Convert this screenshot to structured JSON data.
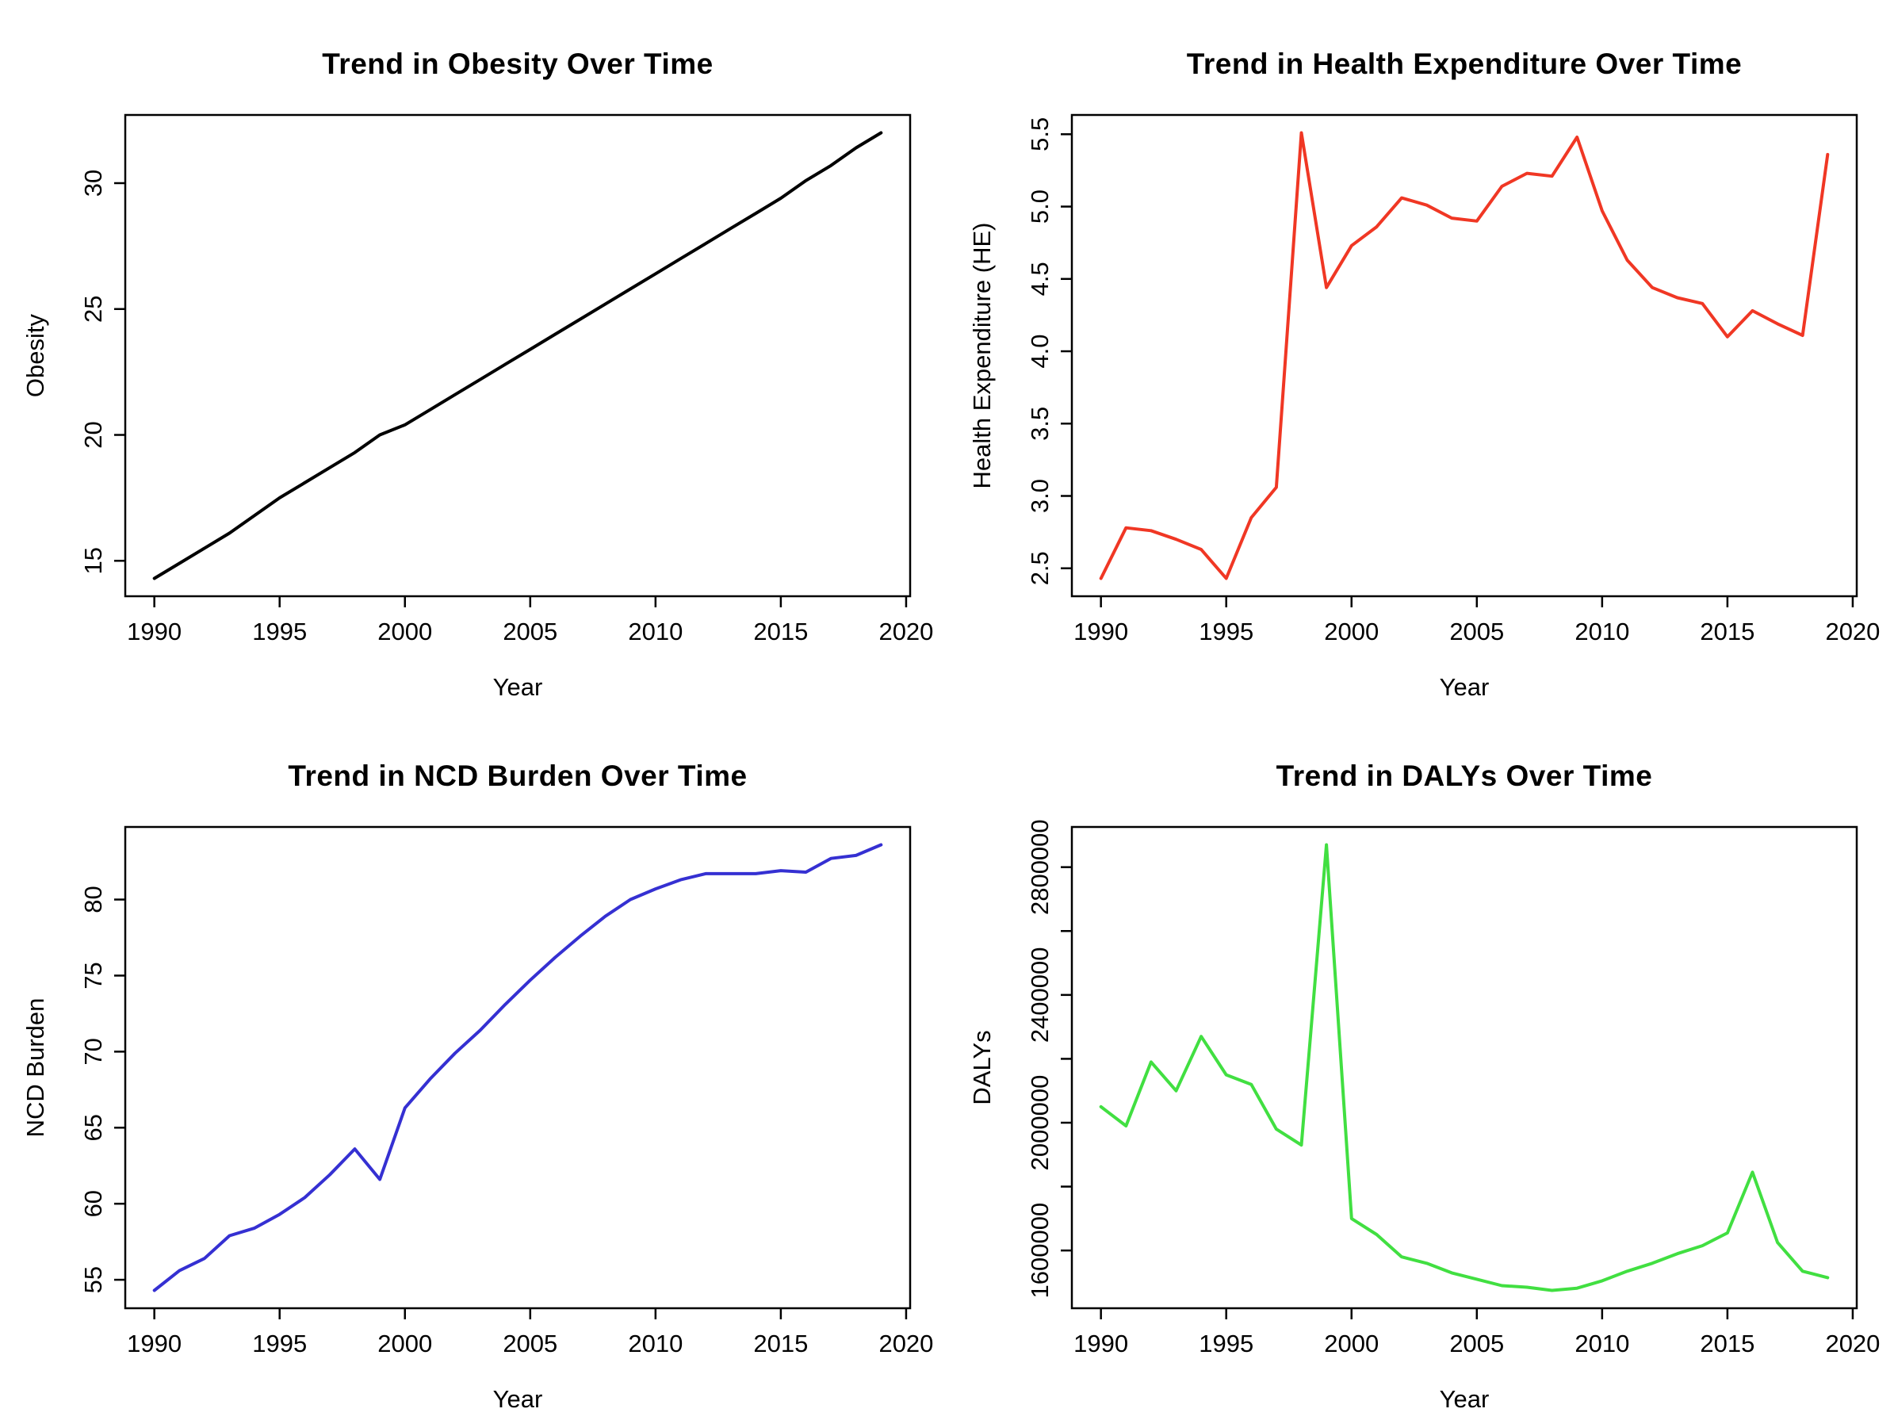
{
  "page": {
    "background_color": "#ffffff",
    "layout": "2x2 grid of R base line plots"
  },
  "chart_data": [
    {
      "id": "obesity",
      "type": "line",
      "title": "Trend in Obesity Over Time",
      "xlabel": "Year",
      "ylabel": "Obesity",
      "color": "#000000",
      "grid": false,
      "legend": "none",
      "x": [
        1990,
        1991,
        1992,
        1993,
        1994,
        1995,
        1996,
        1997,
        1998,
        1999,
        2000,
        2001,
        2002,
        2003,
        2004,
        2005,
        2006,
        2007,
        2008,
        2009,
        2010,
        2011,
        2012,
        2013,
        2014,
        2015,
        2016,
        2017,
        2018,
        2019
      ],
      "values": [
        14.3,
        14.9,
        15.5,
        16.1,
        16.8,
        17.5,
        18.1,
        18.7,
        19.3,
        20.0,
        20.4,
        21.0,
        21.6,
        22.2,
        22.8,
        23.4,
        24.0,
        24.6,
        25.2,
        25.8,
        26.4,
        27.0,
        27.6,
        28.2,
        28.8,
        29.4,
        30.1,
        30.7,
        31.4,
        32.0
      ],
      "xlim": [
        1988.84,
        2020.16
      ],
      "ylim": [
        13.592,
        32.708
      ],
      "xticks": [
        1990,
        1995,
        2000,
        2005,
        2010,
        2015,
        2020
      ],
      "yticks": [
        15,
        20,
        25,
        30
      ],
      "ytick_labels": [
        "15",
        "20",
        "25",
        "30"
      ]
    },
    {
      "id": "health-expenditure",
      "type": "line",
      "title": "Trend in Health Expenditure Over Time",
      "xlabel": "Year",
      "ylabel": "Health Expenditure (HE)",
      "color": "#F03724",
      "grid": false,
      "legend": "none",
      "x": [
        1990,
        1991,
        1992,
        1993,
        1994,
        1995,
        1996,
        1997,
        1998,
        1999,
        2000,
        2001,
        2002,
        2003,
        2004,
        2005,
        2006,
        2007,
        2008,
        2009,
        2010,
        2011,
        2012,
        2013,
        2014,
        2015,
        2016,
        2017,
        2018,
        2019
      ],
      "values": [
        2.43,
        2.78,
        2.76,
        2.7,
        2.63,
        2.43,
        2.85,
        3.06,
        5.51,
        4.44,
        4.73,
        4.86,
        5.06,
        5.01,
        4.92,
        4.9,
        5.14,
        5.23,
        5.21,
        5.48,
        4.97,
        4.63,
        4.44,
        4.37,
        4.33,
        4.1,
        4.28,
        4.19,
        4.11,
        5.36
      ],
      "xlim": [
        1988.84,
        2020.16
      ],
      "ylim": [
        2.3068,
        5.6332
      ],
      "xticks": [
        1990,
        1995,
        2000,
        2005,
        2010,
        2015,
        2020
      ],
      "yticks": [
        2.5,
        3.0,
        3.5,
        4.0,
        4.5,
        5.0,
        5.5
      ],
      "ytick_labels": [
        "2.5",
        "3.0",
        "3.5",
        "4.0",
        "4.5",
        "5.0",
        "5.5"
      ]
    },
    {
      "id": "ncd-burden",
      "type": "line",
      "title": "Trend in NCD Burden Over Time",
      "xlabel": "Year",
      "ylabel": "NCD Burden",
      "color": "#3530D2",
      "grid": false,
      "legend": "none",
      "x": [
        1990,
        1991,
        1992,
        1993,
        1994,
        1995,
        1996,
        1997,
        1998,
        1999,
        2000,
        2001,
        2002,
        2003,
        2004,
        2005,
        2006,
        2007,
        2008,
        2009,
        2010,
        2011,
        2012,
        2013,
        2014,
        2015,
        2016,
        2017,
        2018,
        2019
      ],
      "values": [
        54.3,
        55.6,
        56.4,
        57.9,
        58.4,
        59.3,
        60.4,
        61.9,
        63.6,
        61.6,
        66.3,
        68.2,
        69.9,
        71.4,
        73.1,
        74.7,
        76.2,
        77.6,
        78.9,
        80.0,
        80.7,
        81.3,
        81.7,
        81.7,
        81.7,
        81.9,
        81.8,
        82.7,
        82.9,
        83.6
      ],
      "xlim": [
        1988.84,
        2020.16
      ],
      "ylim": [
        53.128,
        84.772
      ],
      "xticks": [
        1990,
        1995,
        2000,
        2005,
        2010,
        2015,
        2020
      ],
      "yticks": [
        55,
        60,
        65,
        70,
        75,
        80
      ],
      "ytick_labels": [
        "55",
        "60",
        "65",
        "70",
        "75",
        "80"
      ]
    },
    {
      "id": "dalys",
      "type": "line",
      "title": "Trend in DALYs Over Time",
      "xlabel": "Year",
      "ylabel": "DALYs",
      "color": "#41DF41",
      "grid": false,
      "legend": "none",
      "x": [
        1990,
        1991,
        1992,
        1993,
        1994,
        1995,
        1996,
        1997,
        1998,
        1999,
        2000,
        2001,
        2002,
        2003,
        2004,
        2005,
        2006,
        2007,
        2008,
        2009,
        2010,
        2011,
        2012,
        2013,
        2014,
        2015,
        2016,
        2017,
        2018,
        2019
      ],
      "values": [
        2050000,
        1990000,
        2190000,
        2100000,
        2270000,
        2150000,
        2120000,
        1980000,
        1930000,
        2870000,
        1700000,
        1650000,
        1580000,
        1560000,
        1530000,
        1510000,
        1490000,
        1485000,
        1475000,
        1482000,
        1505000,
        1535000,
        1560000,
        1590000,
        1615000,
        1655000,
        1845000,
        1625000,
        1535000,
        1515000
      ],
      "xlim": [
        1988.84,
        2020.16
      ],
      "ylim": [
        1419200,
        2925800
      ],
      "xticks": [
        1990,
        1995,
        2000,
        2005,
        2010,
        2015,
        2020
      ],
      "yticks": [
        1600000,
        1800000,
        2000000,
        2200000,
        2400000,
        2600000,
        2800000
      ],
      "ytick_labels": [
        "1600000",
        "",
        "2000000",
        "",
        "2400000",
        "",
        "2800000"
      ]
    }
  ]
}
